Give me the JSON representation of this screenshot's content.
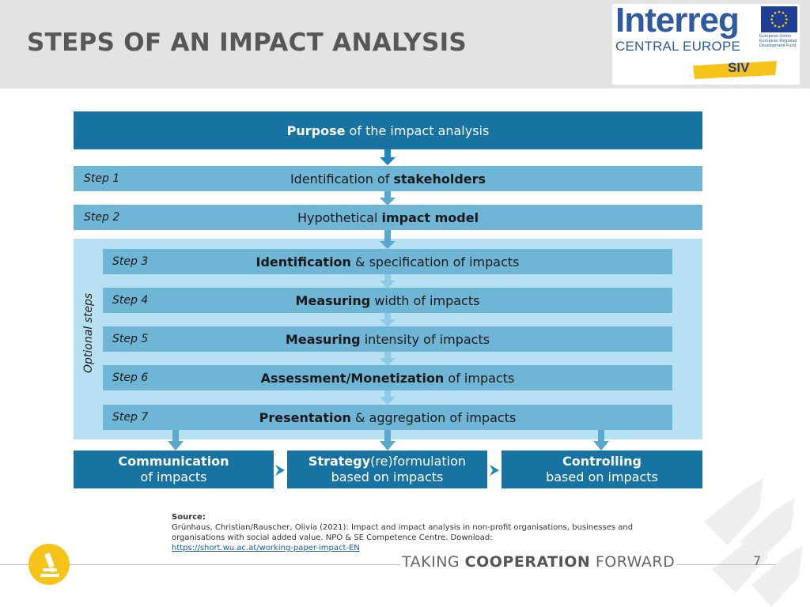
{
  "header": {
    "title": "STEPS OF AN IMPACT ANALYSIS",
    "logo": {
      "brand": "Interreg",
      "program": "CENTRAL EUROPE",
      "eu_text": "European Union European Regional Development Fund",
      "project": "SIV"
    }
  },
  "diagram": {
    "purpose": {
      "bold": "Purpose",
      "rest": " of the impact analysis"
    },
    "steps": [
      {
        "label": "Step 1",
        "pre": "Identification of ",
        "bold": "stakeholders",
        "post": ""
      },
      {
        "label": "Step 2",
        "pre": "Hypothetical ",
        "bold": "impact model",
        "post": ""
      },
      {
        "label": "Step 3",
        "pre": "",
        "bold": "Identification",
        "post": " & specification of impacts"
      },
      {
        "label": "Step 4",
        "pre": "",
        "bold": "Measuring",
        "post": " width of impacts"
      },
      {
        "label": "Step 5",
        "pre": "",
        "bold": "Measuring",
        "post": " intensity of impacts"
      },
      {
        "label": "Step 6",
        "pre": "",
        "bold": "Assessment/Monetization",
        "post": " of impacts"
      },
      {
        "label": "Step 7",
        "pre": "",
        "bold": "Presentation",
        "post": " & aggregation of impacts"
      }
    ],
    "optional_label": "Optional steps",
    "outcomes": [
      {
        "line1": "Communication",
        "line2": "of impacts"
      },
      {
        "line1_bold": "Strategy",
        "line1_rest": "(re)formulation",
        "line2": "based on impacts"
      },
      {
        "line1": "Controlling",
        "line2": "based on impacts"
      }
    ]
  },
  "source": {
    "label": "Source:",
    "text": "Grünhaus, Christian/Rauscher, Olivia (2021): Impact and impact analysis in non-profit organisations, businesses and organisations with social added value. NPO & SE Competence Centre. Download:",
    "link": "https://short.wu.ac.at/working-paper-impact-EN"
  },
  "footer": {
    "tagline_pre": "TAKING ",
    "tagline_bold": "COOPERATION",
    "tagline_post": " FORWARD",
    "page_number": "7"
  },
  "colors": {
    "dark_blue": "#1873a3",
    "mid_blue": "#6fb5d5",
    "light_blue": "#b7e0f2",
    "yellow": "#f6c31b",
    "header_gray": "#e3e3e3"
  }
}
